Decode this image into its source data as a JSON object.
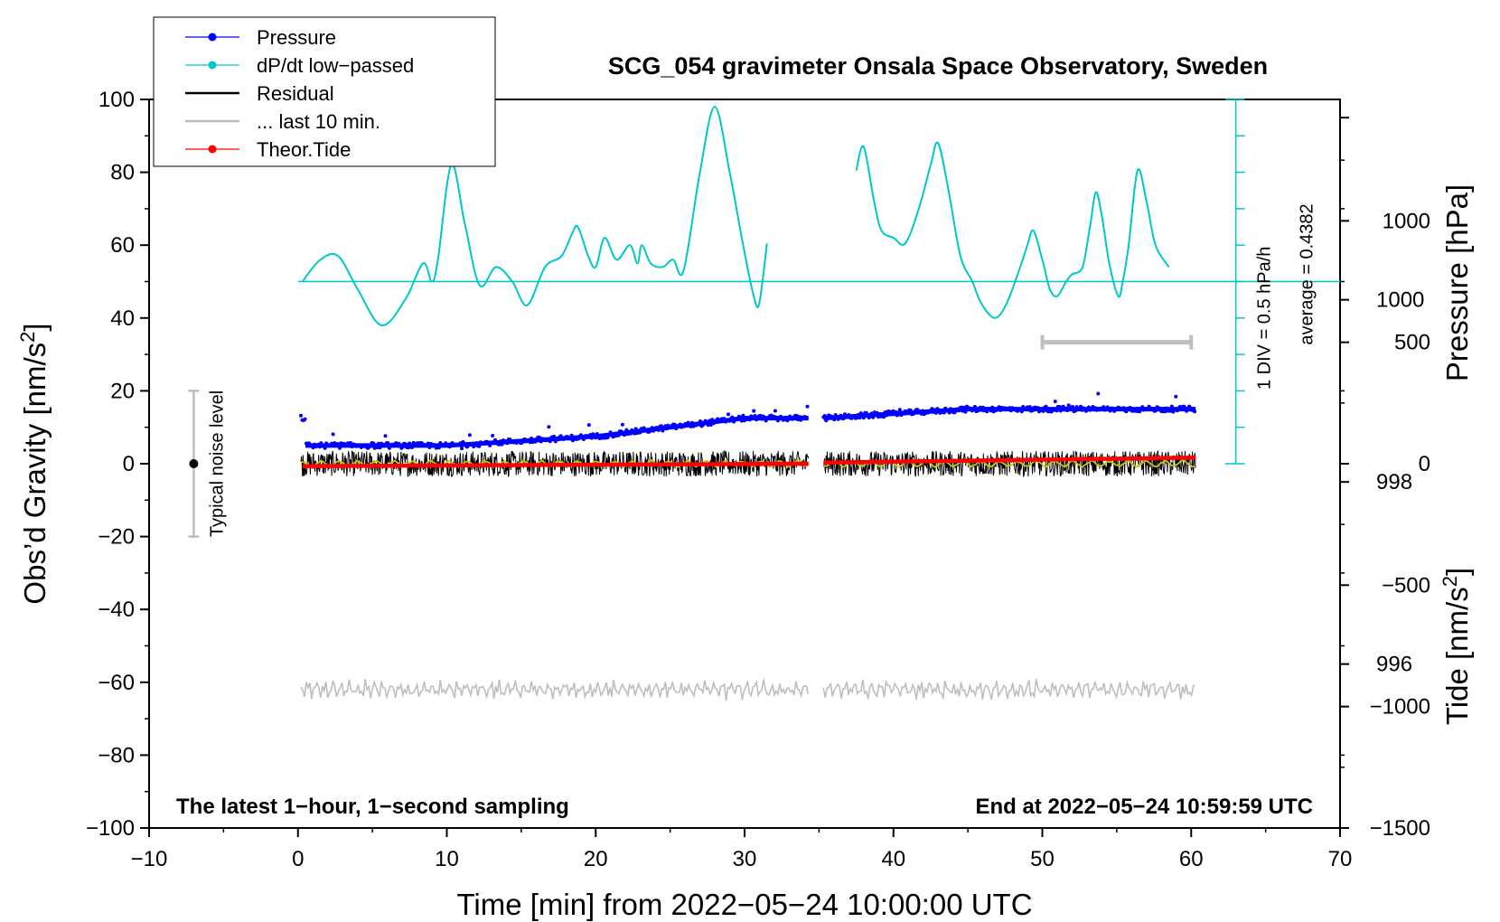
{
  "chart_data": {
    "type": "line",
    "title": "SCG_054 gravimeter Onsala Space Observatory, Sweden",
    "xlabel": "Time [min] from 2022−05−24 10:00:00 UTC",
    "ylabel_left": "Obs’d Gravity [nm/s",
    "ylabel_left_sup": "2",
    "ylabel_left_close": "]",
    "ylabel_right_pressure": "Pressure [hPa]",
    "ylabel_right_tide": "Tide [nm/s",
    "ylabel_right_tide_sup": "2",
    "ylabel_right_tide_close": "]",
    "xlim": [
      -10,
      70
    ],
    "ylim": [
      -100,
      100
    ],
    "pressure_ylim": [
      994.2,
      1002.2
    ],
    "tide_ylim": [
      -1500,
      1500
    ],
    "x_ticks": [
      -10,
      0,
      10,
      20,
      30,
      40,
      50,
      60,
      70
    ],
    "x_tick_labels": [
      "−10",
      "0",
      "10",
      "20",
      "30",
      "40",
      "50",
      "60",
      "70"
    ],
    "y_ticks": [
      -100,
      -80,
      -60,
      -40,
      -20,
      0,
      20,
      40,
      60,
      80,
      100
    ],
    "y_tick_labels": [
      "−100",
      "−80",
      "−60",
      "−40",
      "−20",
      "0",
      "20",
      "40",
      "60",
      "80",
      "100"
    ],
    "pressure_ticks": [
      996,
      998,
      1000
    ],
    "pressure_tick_labels": [
      "996",
      "998",
      "1000"
    ],
    "tide_ticks": [
      -1500,
      -1000,
      -500,
      0,
      500,
      1000
    ],
    "tide_tick_labels": [
      "−1500",
      "−1000",
      "−500",
      "0",
      "500",
      "1000"
    ],
    "footer_left": "The latest 1−hour, 1−second sampling",
    "footer_right": "End at 2022−05−24 10:59:59 UTC",
    "noise_label": "Typical noise level",
    "noise_bar": {
      "x": -7,
      "center": 0,
      "half_range": 20
    },
    "div_label": "1 DIV = 0.5 hPa/h",
    "average_label": "average = 0.4382",
    "dpdt_scale": {
      "x": 63,
      "baseline_y": 50,
      "bottom_y": 0,
      "top_y": 100
    },
    "last10_bar": {
      "x_start": 50,
      "x_end": 60,
      "tide_value": 500
    },
    "legend": [
      {
        "label": "Pressure",
        "color": "#0000ff",
        "style": "line-dot"
      },
      {
        "label": "dP/dt low−passed",
        "color": "#00c8c8",
        "style": "line-dot"
      },
      {
        "label": "Residual",
        "color": "#000000",
        "style": "line"
      },
      {
        "label": "... last 10 min.",
        "color": "#bebebe",
        "style": "line"
      },
      {
        "label": "Theor.Tide",
        "color": "#ff0000",
        "style": "line-dot"
      }
    ],
    "segments": [
      [
        0.2,
        34.3
      ],
      [
        35.3,
        60.3
      ]
    ],
    "series": [
      {
        "name": "Pressure",
        "axis": "pressure",
        "color": "#0000ff",
        "points": [
          [
            0.5,
            998.4
          ],
          [
            10,
            998.4
          ],
          [
            20,
            998.5
          ],
          [
            30,
            998.7
          ],
          [
            34.3,
            998.7
          ],
          [
            35.3,
            998.7
          ],
          [
            45,
            998.8
          ],
          [
            60.3,
            998.8
          ]
        ]
      },
      {
        "name": "dP/dt low-passed",
        "axis": "gravity",
        "color": "#00c8c8",
        "points": [
          [
            0.3,
            50
          ],
          [
            1.5,
            56
          ],
          [
            2.7,
            57
          ],
          [
            4,
            48
          ],
          [
            5.6,
            38
          ],
          [
            7.2,
            45
          ],
          [
            8.4,
            55
          ],
          [
            9,
            50
          ],
          [
            9.4,
            56
          ],
          [
            10.3,
            82
          ],
          [
            11.2,
            66
          ],
          [
            12.2,
            49
          ],
          [
            13.3,
            54
          ],
          [
            14.4,
            50
          ],
          [
            15.4,
            43.5
          ],
          [
            16.6,
            54
          ],
          [
            17.7,
            57
          ],
          [
            18.4,
            63
          ],
          [
            18.8,
            65
          ],
          [
            19.5,
            57
          ],
          [
            20,
            54
          ],
          [
            20.6,
            62
          ],
          [
            21.4,
            56
          ],
          [
            22.3,
            60
          ],
          [
            22.8,
            55
          ],
          [
            23.1,
            60
          ],
          [
            23.7,
            55
          ],
          [
            24.5,
            54
          ],
          [
            25.2,
            56
          ],
          [
            25.9,
            53
          ],
          [
            27,
            80
          ],
          [
            28,
            98
          ],
          [
            29,
            80
          ],
          [
            29.9,
            60
          ],
          [
            30.5,
            48
          ],
          [
            30.9,
            43
          ],
          [
            31.2,
            50
          ],
          [
            31.5,
            60.5
          ]
        ]
      },
      {
        "name": "dP/dt low-passed (segment 2)",
        "axis": "gravity",
        "color": "#00c8c8",
        "points": [
          [
            37.5,
            80.5
          ],
          [
            38,
            87
          ],
          [
            38.7,
            72
          ],
          [
            39.2,
            64
          ],
          [
            40,
            62
          ],
          [
            40.8,
            60.5
          ],
          [
            41.7,
            70
          ],
          [
            42.5,
            82
          ],
          [
            43,
            88
          ],
          [
            43.7,
            75
          ],
          [
            44.5,
            57
          ],
          [
            45.3,
            50
          ],
          [
            45.9,
            44
          ],
          [
            46.8,
            40
          ],
          [
            47.6,
            44
          ],
          [
            48.6,
            55
          ],
          [
            49,
            60
          ],
          [
            49.4,
            64
          ],
          [
            50,
            56
          ],
          [
            50.5,
            48
          ],
          [
            51,
            46
          ],
          [
            51.6,
            50
          ],
          [
            52,
            52
          ],
          [
            52.7,
            54
          ],
          [
            53.2,
            65
          ],
          [
            53.6,
            74.5
          ],
          [
            54,
            68
          ],
          [
            54.5,
            55
          ],
          [
            55.1,
            46
          ],
          [
            55.4,
            50
          ],
          [
            55.8,
            60
          ],
          [
            56.4,
            80.5
          ],
          [
            57,
            72
          ],
          [
            57.6,
            60
          ],
          [
            58.5,
            54
          ]
        ]
      },
      {
        "name": "Residual",
        "axis": "gravity",
        "color": "#000000",
        "baseline": 0,
        "amplitude": 3.5
      },
      {
        "name": "Residual low-passed",
        "axis": "gravity",
        "color": "#c8c800",
        "baseline": 0,
        "amplitude": 1.0
      },
      {
        "name": "Theor.Tide",
        "axis": "tide",
        "color": "#ff0000",
        "points": [
          [
            0.3,
            -10
          ],
          [
            34.3,
            0
          ],
          [
            35.3,
            5
          ],
          [
            60.3,
            25
          ]
        ]
      },
      {
        "name": "... last 10 min.",
        "axis": "gravity",
        "color": "#bebebe",
        "baseline": -62,
        "amplitude": 2.2
      }
    ]
  }
}
